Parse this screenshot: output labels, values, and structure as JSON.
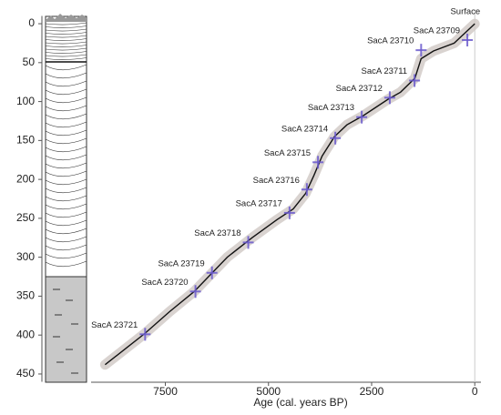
{
  "chart_data": {
    "type": "age-depth",
    "xlabel": "Age (cal. years BP)",
    "xlim": [
      9300,
      -150
    ],
    "xticks": [
      7500,
      5000,
      2500,
      0
    ],
    "ylim": [
      -10,
      460
    ],
    "yticks": [
      0,
      50,
      100,
      150,
      200,
      250,
      300,
      350,
      400,
      450
    ],
    "surface_label": "Surface",
    "dates": {
      "color": "#6a5acd",
      "labels": [
        "SacA 23709",
        "SacA 23710",
        "SacA 23711",
        "SacA 23712",
        "SacA 23713",
        "SacA 23714",
        "SacA 23715",
        "SacA 23716",
        "SacA 23717",
        "SacA 23718",
        "SacA 23719",
        "SacA 23720",
        "SacA 23721"
      ],
      "x": [
        180,
        1300,
        1460,
        2060,
        2740,
        3380,
        3800,
        4070,
        4490,
        5490,
        6370,
        6770,
        7990
      ],
      "values": [
        21,
        34,
        73,
        95,
        120,
        147,
        178,
        213,
        243,
        281,
        320,
        344,
        399
      ]
    },
    "model": {
      "x": [
        0,
        500,
        1000,
        1300,
        1450,
        1800,
        2100,
        2700,
        3100,
        3400,
        3700,
        3900,
        4100,
        4400,
        4800,
        5400,
        6000,
        6400,
        6800,
        7400,
        8000,
        8960
      ],
      "values": [
        0,
        25,
        35,
        45,
        70,
        88,
        97,
        118,
        130,
        145,
        170,
        195,
        218,
        238,
        252,
        275,
        300,
        322,
        344,
        370,
        398,
        438
      ]
    }
  }
}
